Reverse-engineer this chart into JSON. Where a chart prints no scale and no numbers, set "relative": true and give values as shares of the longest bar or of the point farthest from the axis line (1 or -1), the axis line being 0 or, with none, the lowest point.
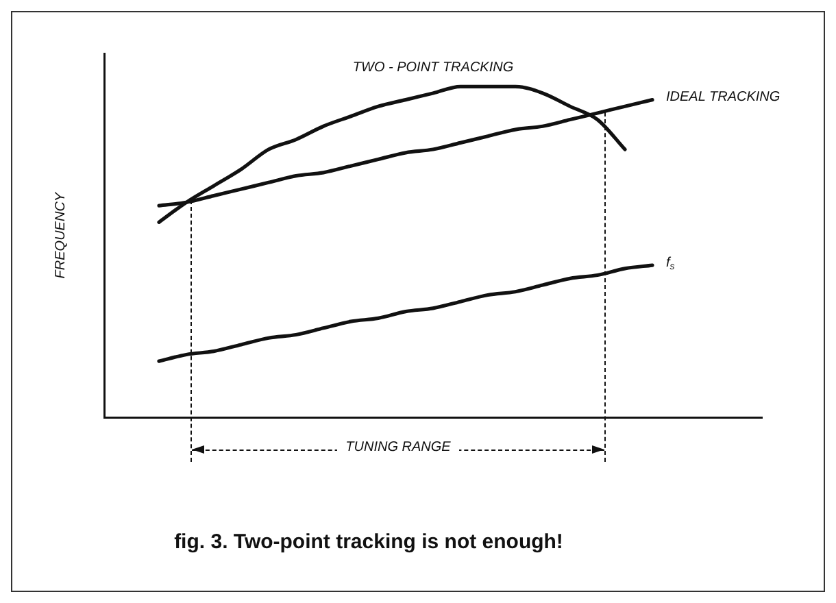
{
  "chart_data": {
    "type": "line",
    "title": "fig. 3. Two-point tracking is not enough!",
    "ylabel": "FREQUENCY",
    "relative": true,
    "grid": false,
    "legend": false,
    "marker": "none",
    "line_style": "solid",
    "categories": [
      null,
      null,
      null,
      null,
      null,
      null,
      null,
      null,
      null,
      null,
      null,
      null,
      null,
      null,
      null,
      null,
      null,
      null,
      null,
      null,
      null,
      null,
      null,
      null,
      null
    ],
    "series": [
      {
        "name": "TWO - POINT TRACKING",
        "color": "#111111",
        "values": [
          null,
          null,
          0.59,
          0.65,
          0.7,
          0.75,
          0.81,
          0.84,
          0.88,
          0.91,
          0.94,
          0.96,
          0.98,
          1.0,
          1.0,
          1.0,
          0.98,
          0.94,
          0.9,
          0.81,
          null,
          null,
          null,
          null,
          null
        ]
      },
      {
        "name": "IDEAL TRACKING",
        "color": "#111111",
        "values": [
          null,
          null,
          0.64,
          0.65,
          0.67,
          0.69,
          0.71,
          0.73,
          0.74,
          0.76,
          0.78,
          0.8,
          0.81,
          0.83,
          0.85,
          0.87,
          0.88,
          0.9,
          0.92,
          0.94,
          0.96,
          null,
          null,
          null,
          null
        ]
      },
      {
        "name": "f$_{s}$",
        "color": "#111111",
        "values": [
          null,
          null,
          0.17,
          0.19,
          0.2,
          0.22,
          0.24,
          0.25,
          0.27,
          0.29,
          0.3,
          0.32,
          0.33,
          0.35,
          0.37,
          0.38,
          0.4,
          0.42,
          0.43,
          0.45,
          0.46,
          null,
          null,
          null,
          null
        ]
      }
    ],
    "annotations": [
      "TUNING RANGE"
    ]
  }
}
